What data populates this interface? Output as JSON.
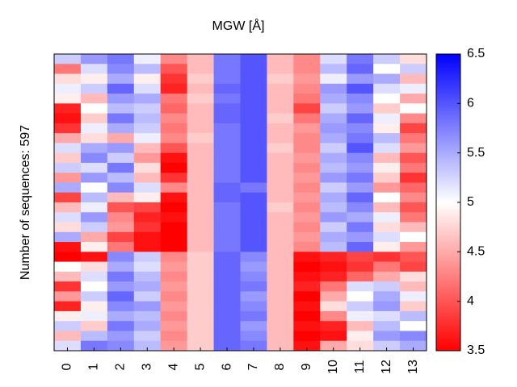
{
  "chart_data": {
    "type": "heatmap",
    "title": "MGW [Å]",
    "ylabel": "Number of sequences: 597",
    "x": [
      0,
      1,
      2,
      3,
      4,
      5,
      6,
      7,
      8,
      9,
      10,
      11,
      12,
      13
    ],
    "colormap": [
      "#ff0000",
      "#ffffff",
      "#0000ff"
    ],
    "clim": [
      3.5,
      6.5
    ],
    "cticks": [
      3.5,
      4,
      4.5,
      5,
      5.5,
      6,
      6.5
    ],
    "z": [
      [
        5.3,
        5.6,
        5.8,
        5.1,
        4.3,
        4.6,
        5.8,
        6.0,
        4.6,
        4.3,
        5.2,
        5.8,
        5.3,
        4.8
      ],
      [
        4.2,
        5.2,
        5.7,
        5.4,
        4.0,
        4.6,
        5.8,
        6.0,
        4.6,
        4.3,
        5.4,
        5.9,
        5.0,
        5.3
      ],
      [
        4.8,
        4.9,
        5.5,
        4.9,
        3.8,
        4.7,
        5.8,
        6.0,
        4.7,
        4.4,
        5.1,
        5.6,
        5.5,
        4.6
      ],
      [
        5.1,
        5.3,
        5.9,
        5.2,
        3.7,
        4.6,
        5.9,
        6.0,
        4.6,
        4.3,
        5.6,
        6.0,
        5.2,
        5.1
      ],
      [
        4.9,
        4.6,
        5.6,
        5.5,
        4.2,
        4.7,
        5.8,
        6.0,
        4.6,
        4.2,
        5.5,
        5.7,
        5.0,
        4.5
      ],
      [
        3.7,
        5.0,
        5.4,
        5.3,
        4.1,
        4.6,
        5.9,
        6.0,
        4.6,
        3.9,
        5.3,
        5.6,
        4.7,
        5.0
      ],
      [
        3.6,
        4.7,
        5.8,
        5.4,
        4.3,
        4.6,
        5.9,
        6.0,
        4.7,
        4.2,
        5.5,
        5.9,
        5.1,
        4.3
      ],
      [
        3.8,
        5.1,
        5.5,
        5.3,
        4.2,
        4.6,
        5.8,
        6.0,
        4.6,
        4.4,
        5.6,
        5.7,
        4.9,
        3.9
      ],
      [
        4.5,
        4.8,
        4.5,
        5.1,
        4.3,
        4.7,
        5.8,
        6.0,
        4.6,
        4.3,
        5.5,
        5.8,
        5.4,
        4.2
      ],
      [
        5.2,
        5.5,
        5.6,
        4.6,
        4.0,
        4.6,
        5.8,
        6.0,
        4.7,
        4.3,
        5.3,
        6.0,
        5.2,
        4.4
      ],
      [
        4.7,
        5.7,
        5.3,
        4.4,
        3.6,
        4.6,
        5.8,
        6.0,
        4.6,
        4.4,
        5.5,
        5.7,
        4.6,
        4.0
      ],
      [
        5.3,
        5.2,
        5.8,
        4.8,
        3.5,
        4.6,
        5.8,
        6.0,
        4.6,
        4.3,
        5.4,
        5.6,
        4.9,
        4.2
      ],
      [
        4.4,
        5.6,
        5.4,
        4.6,
        3.8,
        4.6,
        5.8,
        6.0,
        4.6,
        4.4,
        5.6,
        5.8,
        4.7,
        3.8
      ],
      [
        5.5,
        5.0,
        5.7,
        5.2,
        4.3,
        4.6,
        5.9,
        5.8,
        4.6,
        4.3,
        5.3,
        5.6,
        4.4,
        4.1
      ],
      [
        3.9,
        5.4,
        4.6,
        4.9,
        3.6,
        4.6,
        5.9,
        6.0,
        4.6,
        4.4,
        5.5,
        5.9,
        5.0,
        4.3
      ],
      [
        4.6,
        5.1,
        4.0,
        3.9,
        3.5,
        4.6,
        5.8,
        6.0,
        4.7,
        4.3,
        5.4,
        5.7,
        4.6,
        4.0
      ],
      [
        5.2,
        5.6,
        4.3,
        3.7,
        3.6,
        4.6,
        5.8,
        6.0,
        4.6,
        4.4,
        5.6,
        5.5,
        5.1,
        4.2
      ],
      [
        4.8,
        5.3,
        4.4,
        3.8,
        3.5,
        4.6,
        5.8,
        6.0,
        4.6,
        4.3,
        5.3,
        5.8,
        4.8,
        4.6
      ],
      [
        5.5,
        4.5,
        3.9,
        3.6,
        3.5,
        4.6,
        5.8,
        6.0,
        4.6,
        4.4,
        5.5,
        5.6,
        5.2,
        5.0
      ],
      [
        3.6,
        4.9,
        4.2,
        3.6,
        3.5,
        4.6,
        5.8,
        6.0,
        4.6,
        4.3,
        5.4,
        5.9,
        4.9,
        4.4
      ],
      [
        3.5,
        3.6,
        5.7,
        5.3,
        4.3,
        4.7,
        5.9,
        5.7,
        4.6,
        3.6,
        3.7,
        3.9,
        3.8,
        4.0
      ],
      [
        5.0,
        4.8,
        5.5,
        5.2,
        4.4,
        4.7,
        5.9,
        5.6,
        4.6,
        3.5,
        3.6,
        3.8,
        4.2,
        3.9
      ],
      [
        4.6,
        5.2,
        5.8,
        5.4,
        4.3,
        4.7,
        5.9,
        5.7,
        4.6,
        3.6,
        3.7,
        4.1,
        4.5,
        4.8
      ],
      [
        3.8,
        5.0,
        5.6,
        5.5,
        4.4,
        4.7,
        5.9,
        5.8,
        4.6,
        3.7,
        4.2,
        5.2,
        5.3,
        4.6
      ],
      [
        4.4,
        5.3,
        5.9,
        5.3,
        4.3,
        4.7,
        5.9,
        5.6,
        4.6,
        3.5,
        4.5,
        5.0,
        5.5,
        5.1
      ],
      [
        3.7,
        4.9,
        5.7,
        5.6,
        4.4,
        4.7,
        5.9,
        5.7,
        4.6,
        3.6,
        4.8,
        5.3,
        5.6,
        4.7
      ],
      [
        4.9,
        5.1,
        5.5,
        5.4,
        4.3,
        4.7,
        5.9,
        5.8,
        4.6,
        3.5,
        4.3,
        5.1,
        5.2,
        5.4
      ],
      [
        5.3,
        4.7,
        5.8,
        5.5,
        4.4,
        4.7,
        5.9,
        5.6,
        4.6,
        3.6,
        3.7,
        4.6,
        5.4,
        5.0
      ],
      [
        4.6,
        5.4,
        5.6,
        5.3,
        4.3,
        4.7,
        5.9,
        5.7,
        4.6,
        3.5,
        3.6,
        4.9,
        5.6,
        5.7
      ],
      [
        5.2,
        5.8,
        5.7,
        5.4,
        4.4,
        4.7,
        5.9,
        5.8,
        4.6,
        3.6,
        4.5,
        4.8,
        5.3,
        5.5
      ]
    ]
  }
}
